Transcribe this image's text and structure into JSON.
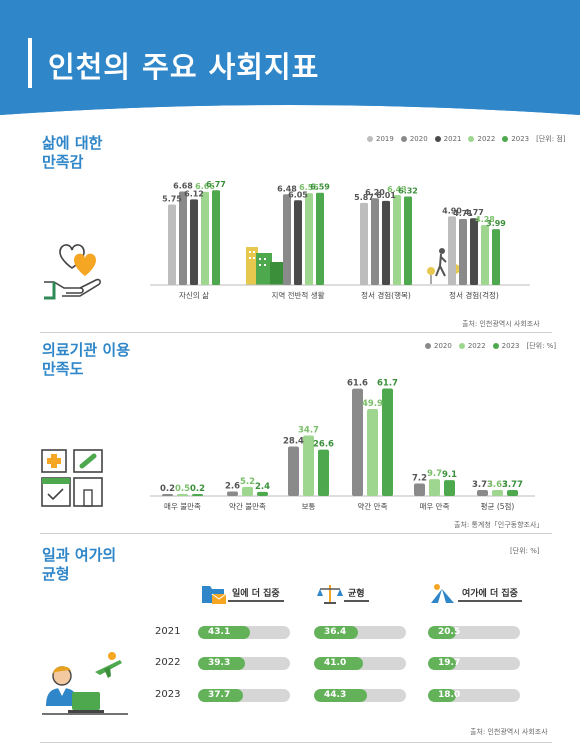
{
  "header": {
    "title": "인천의 주요 사회지표"
  },
  "colors": {
    "y2019": "#bdbdbd",
    "y2020": "#8a8a8a",
    "y2021": "#4a4a4a",
    "y2022": "#9fd68f",
    "y2023": "#4ea84e",
    "accent": "#2f86c8"
  },
  "section1": {
    "title_line1": "삶에 대한",
    "title_line2": "만족감",
    "unit": "[단위: 점]",
    "source": "출처: 인천광역시 사회조사"
  },
  "section2": {
    "title_line1": "의료기관 이용",
    "title_line2": "만족도",
    "unit": "[단위: %]",
    "source": "출처: 통계청「인구동향조사」"
  },
  "section3": {
    "title_line1": "일과 여가의",
    "title_line2": "균형",
    "unit": "[단위: %]",
    "source": "출처: 인천광역시 사회조사",
    "headers": {
      "work": "일에 더 집중",
      "balance": "균형",
      "leisure": "여가에 더 집중"
    },
    "years": [
      "2021",
      "2022",
      "2023"
    ]
  },
  "chart_data": [
    {
      "type": "bar",
      "series": [
        {
          "name": "2019",
          "values": [
            5.75,
            null,
            5.87,
            4.9
          ]
        },
        {
          "name": "2020",
          "values": [
            6.68,
            6.48,
            6.2,
            4.71
          ]
        },
        {
          "name": "2021",
          "values": [
            6.12,
            6.05,
            6.01,
            4.77
          ]
        },
        {
          "name": "2022",
          "values": [
            6.66,
            6.56,
            6.43,
            4.28
          ]
        },
        {
          "name": "2023",
          "values": [
            6.77,
            6.59,
            6.32,
            3.99
          ]
        }
      ],
      "labels": [
        [
          "5.75",
          "6.68",
          "6.12",
          "6.66",
          "6.77"
        ],
        [
          "",
          "6.48",
          "6.05",
          "6.56",
          "6.59"
        ],
        [
          "5.87",
          "6.20",
          "6.01",
          "6.43",
          "6.32"
        ],
        [
          "4.90",
          "4.71",
          "4.77",
          "4.28",
          "3.99"
        ]
      ],
      "categories": [
        "자신의 삶",
        "지역 전반적 생활",
        "정서 경험(행복)",
        "정서 경험(걱정)"
      ],
      "ylim": [
        0,
        8
      ],
      "legend": "top-right"
    },
    {
      "type": "bar",
      "series": [
        {
          "name": "2020",
          "values": [
            0.2,
            2.6,
            28.4,
            61.6,
            7.2,
            3.73
          ]
        },
        {
          "name": "2022",
          "values": [
            0.5,
            5.2,
            34.7,
            49.9,
            9.7,
            3.63
          ]
        },
        {
          "name": "2023",
          "values": [
            0.2,
            2.4,
            26.6,
            61.7,
            9.1,
            3.77
          ]
        }
      ],
      "labels": [
        [
          "0.2",
          "0.5",
          "0.2"
        ],
        [
          "2.6",
          "5.2",
          "2.4"
        ],
        [
          "28.4",
          "34.7",
          "26.6"
        ],
        [
          "61.6",
          "49.9",
          "61.7"
        ],
        [
          "7.2",
          "9.7",
          "9.1"
        ],
        [
          "3.73",
          "3.63",
          "3.77"
        ]
      ],
      "categories": [
        "매우 불만족",
        "약간 불만족",
        "보통",
        "약간 만족",
        "매우 만족",
        "평균 (5점)"
      ],
      "ylim": [
        0,
        70
      ],
      "legend": "top-right"
    },
    {
      "type": "table",
      "categories": [
        "일에 더 집중",
        "균형",
        "여가에 더 집중"
      ],
      "x": [
        "2021",
        "2022",
        "2023"
      ],
      "series": [
        {
          "name": "일에 더 집중",
          "values": [
            43.1,
            39.3,
            37.7
          ],
          "labels": [
            "43.1",
            "39.3",
            "37.7"
          ]
        },
        {
          "name": "균형",
          "values": [
            36.4,
            41.0,
            44.3
          ],
          "labels": [
            "36.4",
            "41.0",
            "44.3"
          ]
        },
        {
          "name": "여가에 더 집중",
          "values": [
            20.5,
            19.7,
            18.0
          ],
          "labels": [
            "20.5",
            "19.7",
            "18.0"
          ]
        }
      ],
      "ylim": [
        0,
        100
      ]
    }
  ]
}
